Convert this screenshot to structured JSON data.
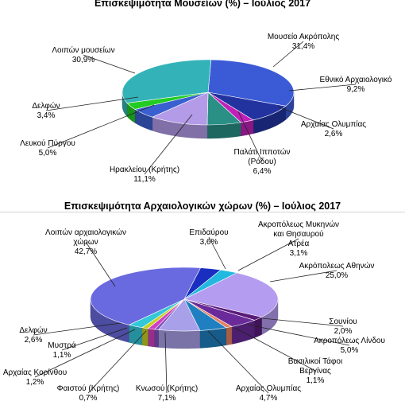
{
  "chart_data": [
    {
      "type": "pie",
      "title": "Επισκεψιμότητα Μουσείων (%) – Ιούλιος  2017",
      "slices": [
        {
          "label": "Μουσείο Ακρόπολης",
          "value": 31.4,
          "value_label": "31,4%",
          "color": "#3b5bd6"
        },
        {
          "label": "Εθνικό Αρχαιολογικό",
          "value": 9.2,
          "value_label": "9,2%",
          "color": "#2233a0"
        },
        {
          "label": "Αρχαίας Ολυμπίας",
          "value": 2.6,
          "value_label": "2,6%",
          "color": "#c020b8"
        },
        {
          "label": "Παλάτι Ιπποτών (Ρόδου)",
          "label_lines": [
            "Παλάτι Ιπποτών",
            "(Ρόδου)"
          ],
          "value": 6.4,
          "value_label": "6,4%",
          "color": "#2a8f85"
        },
        {
          "label": "Ηρακλείου (Κρήτης)",
          "value": 11.1,
          "value_label": "11,1%",
          "color": "#b39be8"
        },
        {
          "label": "Λευκού Πύργου",
          "value": 5.0,
          "value_label": "5,0%",
          "color": "#3a5fd0"
        },
        {
          "label": "Δελφών",
          "value": 3.4,
          "value_label": "3,4%",
          "color": "#22cc22"
        },
        {
          "label": "Λοιπών μουσείων",
          "value": 30.9,
          "value_label": "30,9%",
          "color": "#33b3b8"
        }
      ]
    },
    {
      "type": "pie",
      "title": "Επισκεψιμότητα Αρχαιολογικών χώρων (%) – Ιούλιος 2017",
      "slices": [
        {
          "label": "Επιδαύρου",
          "value": 3.6,
          "value_label": "3,6%",
          "color": "#1a2fc0"
        },
        {
          "label": "Ακροπόλεως Μυκηνών και Θησαυρού Ατρέα",
          "label_lines": [
            "Ακροπόλεως Μυκηνών",
            "και Θησαυρού",
            "Ατρέα"
          ],
          "value": 3.1,
          "value_label": "3,1%",
          "color": "#22b8e0"
        },
        {
          "label": "Ακρόπολεως Αθηνών",
          "value": 25.0,
          "value_label": "25,0%",
          "color": "#b49cf0"
        },
        {
          "label": "Σουνίου",
          "value": 2.0,
          "value_label": "2,0%",
          "color": "#5a1a7a"
        },
        {
          "label": "Ακροπόλεως Λίνδου",
          "value": 5.0,
          "value_label": "5,0%",
          "color": "#6a2a9a"
        },
        {
          "label": "Βασιλικοί Τάφοι Βεργίνας",
          "label_lines": [
            "Βασιλικοί Τάφοι",
            "Βεργίνας"
          ],
          "value": 1.1,
          "value_label": "1,1%",
          "color": "#e88060"
        },
        {
          "label": "Αρχαίας Ολυμπίας",
          "value": 4.7,
          "value_label": "4,7%",
          "color": "#1f7fc0"
        },
        {
          "label": "Κνωσού (Κρήτης)",
          "value": 7.1,
          "value_label": "7,1%",
          "color": "#a8a0e8"
        },
        {
          "label": "Φαιστού (Κρήτης)",
          "value": 0.7,
          "value_label": "0,7%",
          "color": "#8050c0"
        },
        {
          "label": "Αρχαίας Κορίνθου",
          "value": 1.2,
          "value_label": "1,2%",
          "color": "#d040c0"
        },
        {
          "label": "Μυστρά",
          "value": 1.1,
          "value_label": "1,1%",
          "color": "#c8d020"
        },
        {
          "label": "Δελφών",
          "value": 2.6,
          "value_label": "2,6%",
          "color": "#33c8d8"
        },
        {
          "label": "Λοιπών αρχαιολογικών χώρων",
          "label_lines": [
            "Λοιπών αρχαιολογικών",
            "χώρων"
          ],
          "value": 42.7,
          "value_label": "42,7%",
          "color": "#6a6ae0"
        }
      ]
    }
  ]
}
